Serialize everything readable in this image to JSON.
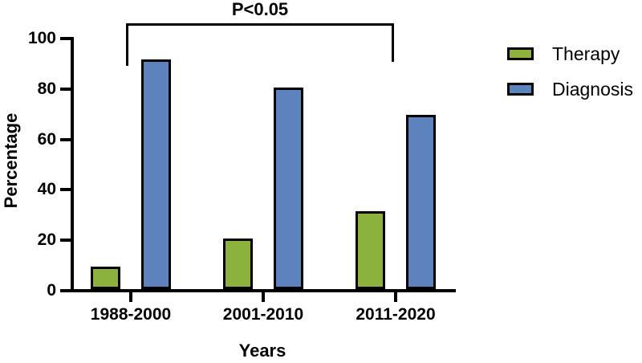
{
  "chart_data": {
    "type": "bar",
    "title": "",
    "categories": [
      "1988-2000",
      "2001-2010",
      "2011-2020"
    ],
    "series": [
      {
        "name": "Therapy",
        "color": "#8cb23d",
        "values": [
          9,
          20,
          31
        ]
      },
      {
        "name": "Diagnosis",
        "color": "#5d83bf",
        "values": [
          91,
          80,
          69
        ]
      }
    ],
    "xlabel": "Years",
    "ylabel": "Percentage",
    "ylim": [
      0,
      100
    ],
    "yticks": [
      0,
      20,
      40,
      60,
      80,
      100
    ],
    "grid": false,
    "legend_position": "right",
    "axis_color": "#000000",
    "background_color": "#ffffff",
    "annotation": {
      "label": "P<0.05",
      "from_category": "1988-2000",
      "to_category": "2011-2020"
    }
  }
}
